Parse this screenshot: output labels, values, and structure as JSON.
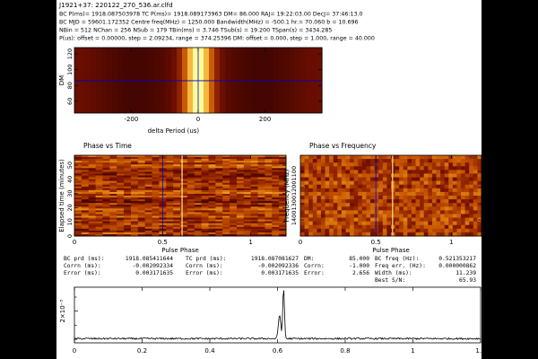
{
  "header": {
    "title": "J1921+37: 220122_270_536.ar.clfd",
    "lines": [
      "BC P(ms)= 1918.087503978  TC P(ms)= 1918.089173963  DM= 86.000  RAJ= 19:22:03.00  DecJ= 37:46:13.0",
      "BC MJD = 59601.172352  Centre freq(MHz) = 1250.000  Bandwidth(MHz) = -500.1  hr.= 70.060  b = 10.696",
      "NBin = 512  NChan = 256  NSub = 179  TBin(ms) = 3.746  TSub(s) = 19.200  TSpan(s) = 3434.285",
      "P(us): offset = 0.00000,  step = 2.09234,  range = 374.25396  DM: offset = 0.000,  step = 1.000,  range = 40.000"
    ]
  },
  "chart_data": [
    {
      "type": "heatmap",
      "name": "dm-period-search",
      "xlabel": "delta Period (us)",
      "ylabel": "DM",
      "xlim": [
        -370,
        370
      ],
      "ylim": [
        45,
        128
      ],
      "xticks": [
        -200,
        0,
        200
      ],
      "yticks": [
        60,
        80,
        100,
        120
      ],
      "crosshair": {
        "x": 0,
        "y": 86
      },
      "peak": {
        "x": 0,
        "width": 42
      }
    },
    {
      "type": "heatmap",
      "name": "phase-vs-time",
      "title": "Phase vs Time",
      "xlabel": "Pulse Phase",
      "ylabel": "Elapsed time (minutes)",
      "xlim": [
        0,
        1.2
      ],
      "ylim": [
        0,
        57
      ],
      "xticks": [
        0,
        0.5,
        1
      ],
      "yticks": [
        0,
        10,
        20,
        30,
        40,
        50
      ],
      "marker_phase": 0.5,
      "signal_phase": 0.61
    },
    {
      "type": "heatmap",
      "name": "phase-vs-frequency",
      "title": "Phase vs Frequency",
      "xlabel": "Pulse Phase",
      "ylabel": "Frequency (MHz)",
      "xlim": [
        0,
        1.2
      ],
      "ylim": [
        1000,
        1500
      ],
      "xticks": [
        0,
        0.5,
        1
      ],
      "yticks": [
        1100,
        1200,
        1300,
        1400
      ],
      "ytick_labels": "1400130012001100",
      "marker_phase": 0.5,
      "signal_phase": 0.61
    },
    {
      "type": "line",
      "name": "pulse-profile",
      "xlim": [
        0,
        1.2
      ],
      "ylim": [
        -0.00025,
        0.0037
      ],
      "xticks": [
        0,
        0.2,
        0.4,
        0.6,
        0.8,
        1,
        1.2
      ],
      "ytick_label": "2×10⁻³",
      "ytick_value": 0.002,
      "baseline": 5e-05,
      "peaks": [
        {
          "x": 0.606,
          "height": 0.0017,
          "width": 0.005
        },
        {
          "x": 0.618,
          "height": 0.0036,
          "width": 0.0035
        }
      ]
    }
  ],
  "stats": {
    "col1": {
      "labels": [
        "BC prd (ms):",
        "Corrn (ms):",
        "Error (ms):"
      ],
      "values": [
        "1918.085411644",
        "-0.002092334",
        "0.003171635"
      ]
    },
    "col2": {
      "labels": [
        "TC prd (ms):",
        "Corrn (ms):",
        "Error (ms):"
      ],
      "values": [
        "1918.087081627",
        "-0.002092336",
        "0.003171635"
      ]
    },
    "col3": {
      "labels": [
        "DM:",
        "Corrn:",
        "Error:"
      ],
      "values": [
        "85.000",
        "-1.000",
        "2.656"
      ]
    },
    "col4": {
      "labels": [
        "BC freq (Hz):",
        "Freq err. (Hz):",
        "Width (ms):",
        "Best S/N:"
      ],
      "values": [
        "0.521353217",
        "0.000000862",
        "11.239",
        "65.93"
      ]
    }
  },
  "colors": {
    "background": "#ffffff",
    "letterbox": "#000000",
    "marker_line": "#0000cc",
    "heat_low": "#3a0000",
    "heat_high": "#ffff90"
  }
}
